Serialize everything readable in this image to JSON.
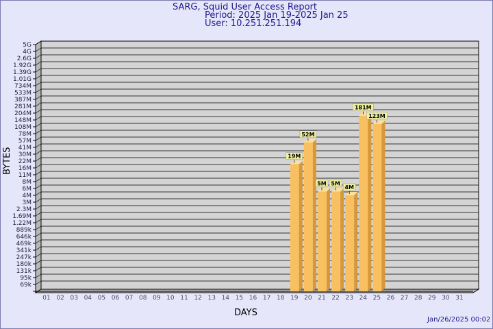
{
  "header": {
    "title": "SARG, Squid User Access Report",
    "period": "Period: 2025 Jan 19-2025 Jan 25",
    "user": "User: 10.251.251.194"
  },
  "footer": {
    "timestamp": "Jan/26/2025 00:02"
  },
  "colors": {
    "background": "#e6e6fa",
    "plot_back": "#d4d4d4",
    "plot_wall": "#b8b8b8",
    "bar_front": "#f8c060",
    "bar_side": "#d89838",
    "bar_top": "#fce098",
    "label_box": "#f0f0a0",
    "title": "#1a1a8c"
  },
  "chart_data": {
    "type": "bar",
    "title": "SARG, Squid User Access Report",
    "xlabel": "DAYS",
    "ylabel": "BYTES",
    "y_scale": "log",
    "y_ticks": [
      "5G",
      "4G",
      "2.6G",
      "1.92G",
      "1.39G",
      "1.01G",
      "734M",
      "533M",
      "387M",
      "281M",
      "204M",
      "148M",
      "108M",
      "78M",
      "57M",
      "41M",
      "30M",
      "22M",
      "16M",
      "11M",
      "8M",
      "6M",
      "4M",
      "3M",
      "2.3M",
      "1.69M",
      "1.22M",
      "889k",
      "646k",
      "469k",
      "341k",
      "247k",
      "180k",
      "131k",
      "95k",
      "69k"
    ],
    "categories": [
      "01",
      "02",
      "03",
      "04",
      "05",
      "06",
      "07",
      "08",
      "09",
      "10",
      "11",
      "12",
      "13",
      "14",
      "15",
      "16",
      "17",
      "18",
      "19",
      "20",
      "21",
      "22",
      "23",
      "24",
      "25",
      "26",
      "27",
      "28",
      "29",
      "30",
      "31"
    ],
    "values": [
      null,
      null,
      null,
      null,
      null,
      null,
      null,
      null,
      null,
      null,
      null,
      null,
      null,
      null,
      null,
      null,
      null,
      null,
      "19M",
      "52M",
      "5M",
      "5M",
      "4M",
      "181M",
      "123M",
      null,
      null,
      null,
      null,
      null,
      null
    ],
    "grid": true,
    "legend": "none"
  }
}
